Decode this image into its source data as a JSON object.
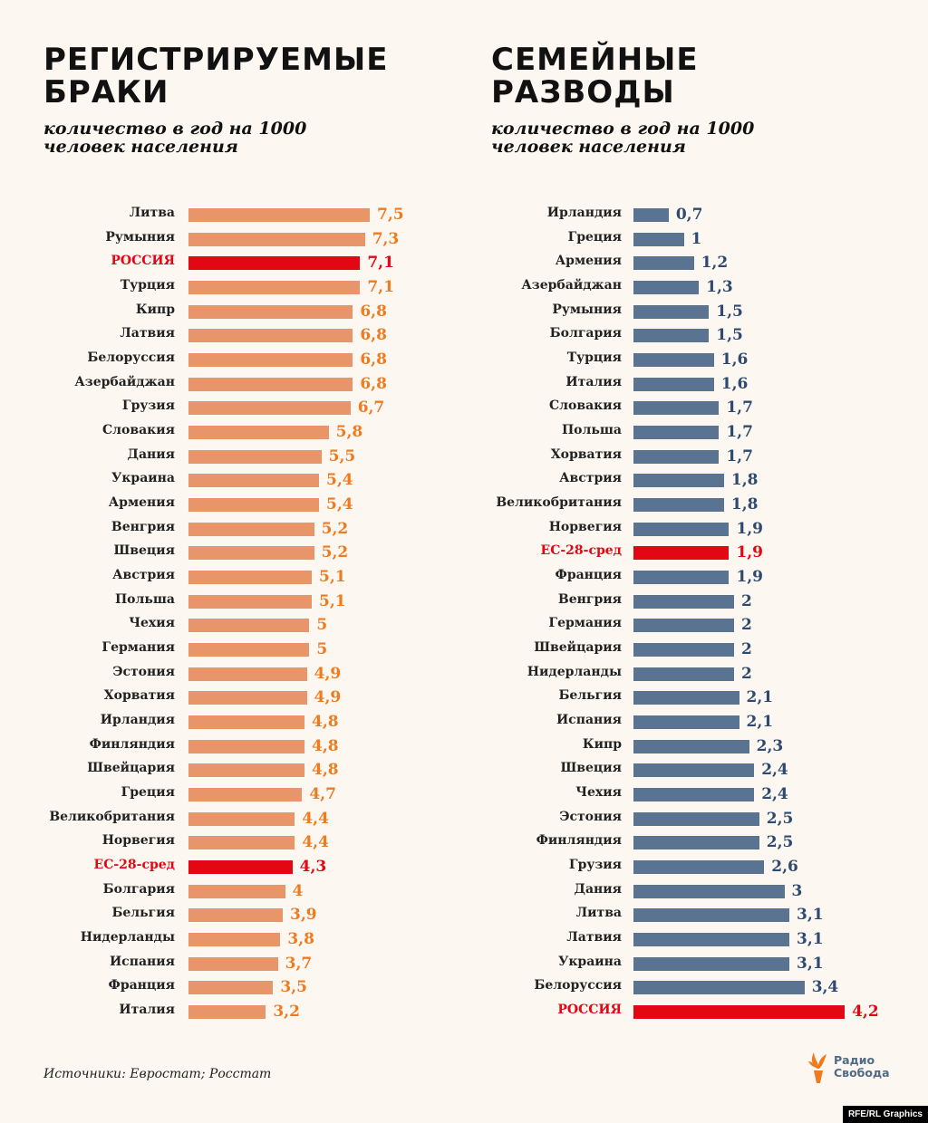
{
  "colors": {
    "background": "#fcf7f1",
    "marriage_bar": "#e8956a",
    "marriage_text": "#f07a1e",
    "highlight": "#e30613",
    "divorce_bar": "#5a7391",
    "divorce_text": "#2e4a70"
  },
  "chart_data": [
    {
      "type": "bar",
      "orientation": "horizontal",
      "title": "РЕГИСТРИРУЕМЫЕ БРАКИ",
      "subtitle": "количество в год на 1000 человек населения",
      "categories": [
        "Литва",
        "Румыния",
        "РОССИЯ",
        "Турция",
        "Кипр",
        "Латвия",
        "Белоруссия",
        "Азербайджан",
        "Грузия",
        "Словакия",
        "Дания",
        "Украина",
        "Армения",
        "Венгрия",
        "Швеция",
        "Австрия",
        "Польша",
        "Чехия",
        "Германия",
        "Эстония",
        "Хорватия",
        "Ирландия",
        "Финляндия",
        "Швейцария",
        "Греция",
        "Великобритания",
        "Норвегия",
        "ЕС-28-сред",
        "Болгария",
        "Бельгия",
        "Нидерланды",
        "Испания",
        "Франция",
        "Италия"
      ],
      "values": [
        7.5,
        7.3,
        7.1,
        7.1,
        6.8,
        6.8,
        6.8,
        6.8,
        6.7,
        5.8,
        5.5,
        5.4,
        5.4,
        5.2,
        5.2,
        5.1,
        5.1,
        5,
        5,
        4.9,
        4.9,
        4.8,
        4.8,
        4.8,
        4.7,
        4.4,
        4.4,
        4.3,
        4,
        3.9,
        3.8,
        3.7,
        3.5,
        3.2
      ],
      "highlighted": [
        "РОССИЯ",
        "ЕС-28-сред"
      ],
      "xlim": [
        0,
        7.5
      ]
    },
    {
      "type": "bar",
      "orientation": "horizontal",
      "title": "СЕМЕЙНЫЕ РАЗВОДЫ",
      "subtitle": "количество в год на 1000 человек населения",
      "categories": [
        "Ирландия",
        "Греция",
        "Армения",
        "Азербайджан",
        "Румыния",
        "Болгария",
        "Турция",
        "Италия",
        "Словакия",
        "Польша",
        "Хорватия",
        "Австрия",
        "Великобритания",
        "Норвегия",
        "ЕС-28-сред",
        "Франция",
        "Венгрия",
        "Германия",
        "Швейцария",
        "Нидерланды",
        "Бельгия",
        "Испания",
        "Кипр",
        "Швеция",
        "Чехия",
        "Эстония",
        "Финляндия",
        "Грузия",
        "Дания",
        "Литва",
        "Латвия",
        "Украина",
        "Белоруссия",
        "РОССИЯ"
      ],
      "values": [
        0.7,
        1,
        1.2,
        1.3,
        1.5,
        1.5,
        1.6,
        1.6,
        1.7,
        1.7,
        1.7,
        1.8,
        1.8,
        1.9,
        1.9,
        1.9,
        2,
        2,
        2,
        2,
        2.1,
        2.1,
        2.3,
        2.4,
        2.4,
        2.5,
        2.5,
        2.6,
        3,
        3.1,
        3.1,
        3.1,
        3.4,
        4.2
      ],
      "highlighted": [
        "РОССИЯ",
        "ЕС-28-сред"
      ],
      "xlim": [
        0,
        4.2
      ]
    }
  ],
  "source": "Источники: Евростат; Росстат",
  "logo": {
    "line1": "Радио",
    "line2": "Свобода"
  },
  "credit": "RFE/RL Graphics"
}
